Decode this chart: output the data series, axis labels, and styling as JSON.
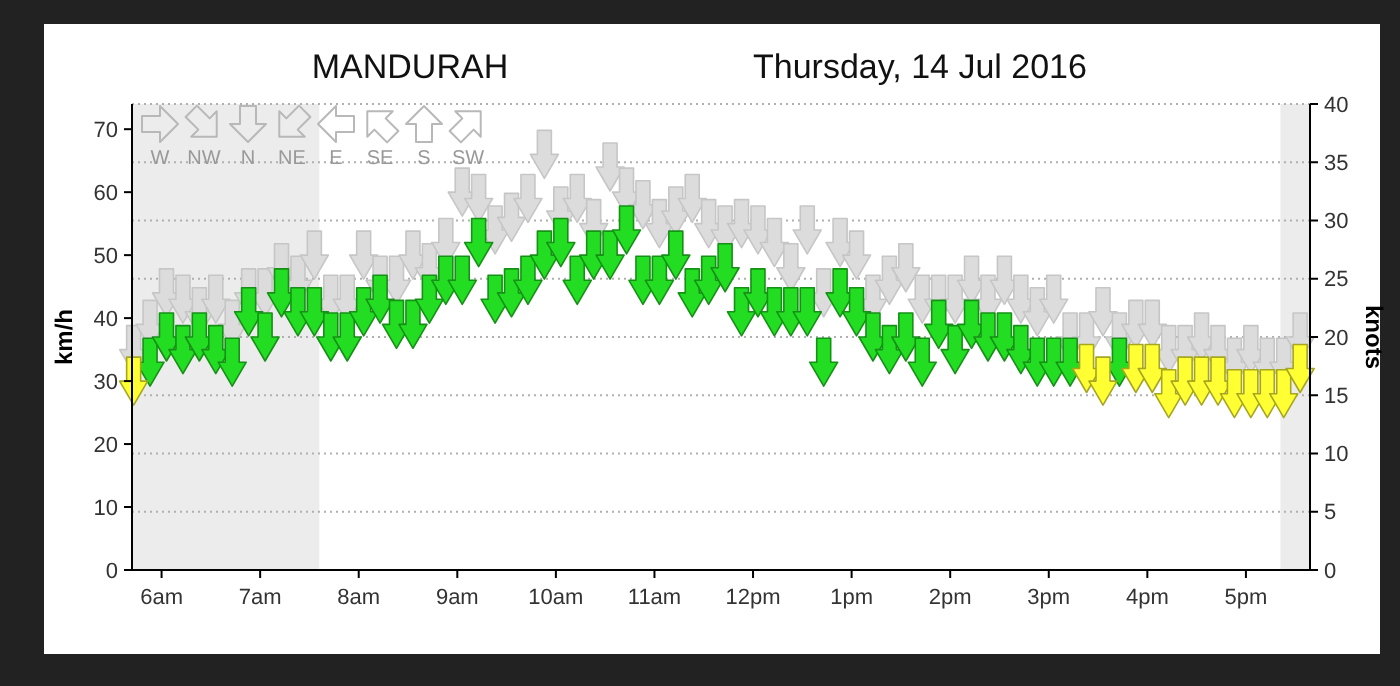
{
  "chart_data": {
    "type": "scatter",
    "title": "MANDURAH",
    "subtitle": "Thursday, 14 Jul 2016",
    "ylabel": "km/h",
    "y2label": "knots",
    "annotations": [
      "W",
      "NW",
      "N",
      "NE",
      "E",
      "SE",
      "S",
      "SW"
    ],
    "x": [
      "2016-07-14T05:43",
      "2016-07-14T05:53",
      "2016-07-14T06:03",
      "2016-07-14T06:13",
      "2016-07-14T06:23",
      "2016-07-14T06:33",
      "2016-07-14T06:43",
      "2016-07-14T06:53",
      "2016-07-14T07:03",
      "2016-07-14T07:13",
      "2016-07-14T07:23",
      "2016-07-14T07:33",
      "2016-07-14T07:43",
      "2016-07-14T07:53",
      "2016-07-14T08:03",
      "2016-07-14T08:13",
      "2016-07-14T08:23",
      "2016-07-14T08:33",
      "2016-07-14T08:43",
      "2016-07-14T08:53",
      "2016-07-14T09:03",
      "2016-07-14T09:13",
      "2016-07-14T09:23",
      "2016-07-14T09:33",
      "2016-07-14T09:43",
      "2016-07-14T09:53",
      "2016-07-14T10:03",
      "2016-07-14T10:13",
      "2016-07-14T10:23",
      "2016-07-14T10:33",
      "2016-07-14T10:43",
      "2016-07-14T10:53",
      "2016-07-14T11:03",
      "2016-07-14T11:13",
      "2016-07-14T11:23",
      "2016-07-14T11:33",
      "2016-07-14T11:43",
      "2016-07-14T11:53",
      "2016-07-14T12:03",
      "2016-07-14T12:13",
      "2016-07-14T12:23",
      "2016-07-14T12:33",
      "2016-07-14T12:43",
      "2016-07-14T12:53",
      "2016-07-14T13:03",
      "2016-07-14T13:13",
      "2016-07-14T13:23",
      "2016-07-14T13:33",
      "2016-07-14T13:43",
      "2016-07-14T13:53",
      "2016-07-14T14:03",
      "2016-07-14T14:13",
      "2016-07-14T14:23",
      "2016-07-14T14:33",
      "2016-07-14T14:43",
      "2016-07-14T14:53",
      "2016-07-14T15:03",
      "2016-07-14T15:13",
      "2016-07-14T15:23",
      "2016-07-14T15:33",
      "2016-07-14T15:43",
      "2016-07-14T15:53",
      "2016-07-14T16:03",
      "2016-07-14T16:13",
      "2016-07-14T16:23",
      "2016-07-14T16:33",
      "2016-07-14T16:43",
      "2016-07-14T16:53",
      "2016-07-14T17:03",
      "2016-07-14T17:13",
      "2016-07-14T17:23",
      "2016-07-14T17:33"
    ],
    "series": [
      {
        "color": "#dcdcdc",
        "values": [
          35,
          39,
          44,
          43,
          41,
          43,
          39,
          44,
          44,
          48,
          46,
          50,
          43,
          43,
          50,
          46,
          46,
          50,
          48,
          52,
          60,
          59,
          54,
          56,
          59,
          66,
          57,
          59,
          55,
          64,
          60,
          58,
          55,
          57,
          59,
          55,
          54,
          55,
          54,
          52,
          48,
          54,
          44,
          52,
          50,
          43,
          46,
          48,
          43,
          43,
          43,
          46,
          43,
          46,
          43,
          41,
          43,
          37,
          37,
          41,
          37,
          39,
          39,
          35,
          35,
          37,
          35,
          33,
          35,
          33,
          33,
          37
        ]
      },
      {
        "color": "#22dd22",
        "values": [
          null,
          33,
          37,
          35,
          37,
          35,
          33,
          41,
          37,
          44,
          41,
          41,
          37,
          37,
          41,
          43,
          39,
          39,
          43,
          46,
          46,
          52,
          43,
          44,
          46,
          50,
          52,
          46,
          50,
          50,
          54,
          46,
          46,
          50,
          44,
          46,
          48,
          41,
          44,
          41,
          41,
          41,
          33,
          44,
          41,
          37,
          35,
          37,
          33,
          39,
          35,
          39,
          37,
          37,
          35,
          33,
          33,
          33,
          null,
          null,
          33,
          null,
          null,
          null,
          null,
          null,
          null,
          null,
          null,
          null,
          null,
          null
        ]
      },
      {
        "color": "#ffff33",
        "values": [
          30,
          null,
          null,
          null,
          null,
          null,
          null,
          null,
          null,
          null,
          null,
          null,
          null,
          null,
          null,
          null,
          null,
          null,
          null,
          null,
          null,
          null,
          null,
          null,
          null,
          null,
          null,
          null,
          null,
          null,
          null,
          null,
          null,
          null,
          null,
          null,
          null,
          null,
          null,
          null,
          null,
          null,
          null,
          null,
          null,
          null,
          null,
          null,
          null,
          null,
          null,
          null,
          null,
          null,
          null,
          null,
          null,
          null,
          32,
          30,
          null,
          32,
          32,
          28,
          30,
          30,
          30,
          28,
          28,
          28,
          28,
          32
        ]
      }
    ],
    "xlim": [
      "2016-07-14T05:42",
      "2016-07-14T17:39"
    ],
    "xticks": [
      {
        "value": "2016-07-14T06:00",
        "label": "6am"
      },
      {
        "value": "2016-07-14T07:00",
        "label": "7am"
      },
      {
        "value": "2016-07-14T08:00",
        "label": "8am"
      },
      {
        "value": "2016-07-14T09:00",
        "label": "9am"
      },
      {
        "value": "2016-07-14T10:00",
        "label": "10am"
      },
      {
        "value": "2016-07-14T11:00",
        "label": "11am"
      },
      {
        "value": "2016-07-14T12:00",
        "label": "12pm"
      },
      {
        "value": "2016-07-14T13:00",
        "label": "1pm"
      },
      {
        "value": "2016-07-14T14:00",
        "label": "2pm"
      },
      {
        "value": "2016-07-14T15:00",
        "label": "3pm"
      },
      {
        "value": "2016-07-14T16:00",
        "label": "4pm"
      },
      {
        "value": "2016-07-14T17:00",
        "label": "5pm"
      }
    ],
    "ylim": [
      0,
      74
    ],
    "yticks": [
      0,
      10,
      20,
      30,
      40,
      50,
      60,
      70
    ],
    "y2lim": [
      0,
      40
    ],
    "y2ticks": [
      0,
      5,
      10,
      15,
      20,
      25,
      30,
      35,
      40
    ],
    "grid": "y",
    "bands": [
      {
        "axis": "x",
        "from": "2016-07-14T05:42",
        "to": "2016-07-14T07:36",
        "color": "#ececec"
      },
      {
        "axis": "x",
        "from": "2016-07-14T17:21",
        "to": "2016-07-14T17:39",
        "color": "#ececec"
      }
    ]
  }
}
